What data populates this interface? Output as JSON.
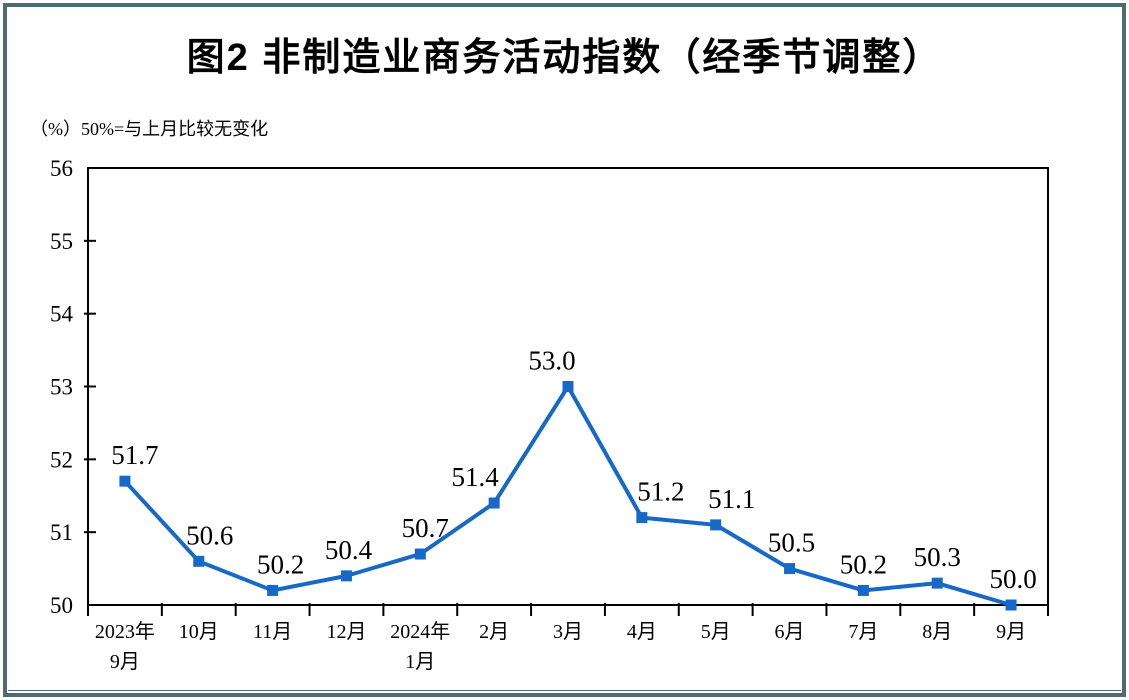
{
  "page": {
    "border_color": "#4e6a72",
    "background": "#ffffff"
  },
  "chart_data": {
    "type": "line",
    "title": "图2 非制造业商务活动指数（经季节调整）",
    "unit_label": "（%）50%=与上月比较无变化",
    "categories": [
      "2023年9月",
      "10月",
      "11月",
      "12月",
      "2024年1月",
      "2月",
      "3月",
      "4月",
      "5月",
      "6月",
      "7月",
      "8月",
      "9月"
    ],
    "category_lines": [
      [
        "2023年",
        "9月"
      ],
      [
        "10月"
      ],
      [
        "11月"
      ],
      [
        "12月"
      ],
      [
        "2024年",
        "1月"
      ],
      [
        "2月"
      ],
      [
        "3月"
      ],
      [
        "4月"
      ],
      [
        "5月"
      ],
      [
        "6月"
      ],
      [
        "7月"
      ],
      [
        "8月"
      ],
      [
        "9月"
      ]
    ],
    "series": [
      {
        "name": "非制造业商务活动指数",
        "values": [
          51.7,
          50.6,
          50.2,
          50.4,
          50.7,
          51.4,
          53.0,
          51.2,
          51.1,
          50.5,
          50.2,
          50.3,
          50.0
        ],
        "labels": [
          "51.7",
          "50.6",
          "50.2",
          "50.4",
          "50.7",
          "51.4",
          "53.0",
          "51.2",
          "51.1",
          "50.5",
          "50.2",
          "50.3",
          "50.0"
        ]
      }
    ],
    "xlabel": "",
    "ylabel": "（%）",
    "ylim": [
      50,
      56
    ],
    "yticks": [
      50,
      51,
      52,
      53,
      54,
      55,
      56
    ],
    "grid": false,
    "legend": "none",
    "line_color": "#1669c8",
    "marker": "square",
    "axis_color": "#000000",
    "label_dx": [
      10,
      11,
      8,
      2,
      5,
      -19,
      -16,
      19,
      16,
      2,
      0,
      0,
      2
    ]
  }
}
